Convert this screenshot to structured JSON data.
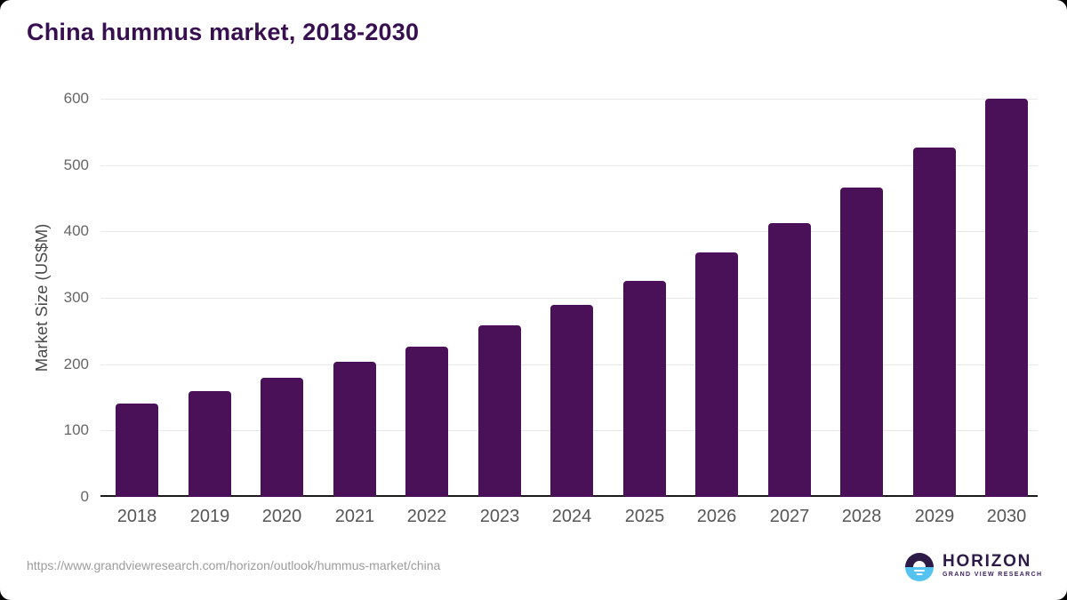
{
  "title": "China hummus market, 2018-2030",
  "chart_data": {
    "type": "bar",
    "title": "China hummus market, 2018-2030",
    "categories": [
      "2018",
      "2019",
      "2020",
      "2021",
      "2022",
      "2023",
      "2024",
      "2025",
      "2026",
      "2027",
      "2028",
      "2029",
      "2030"
    ],
    "values": [
      140,
      160,
      180,
      203,
      227,
      258,
      289,
      326,
      368,
      413,
      466,
      527,
      600
    ],
    "xlabel": "",
    "ylabel": "Market Size (US$M)",
    "ylim": [
      0,
      600
    ],
    "yticks": [
      0,
      100,
      200,
      300,
      400,
      500,
      600
    ],
    "grid": "horizontal",
    "legend": "none",
    "bar_color": "#4a1158"
  },
  "footer": {
    "source_url": "https://www.grandviewresearch.com/horizon/outlook/hummus-market/china"
  },
  "logo": {
    "brand": "HORIZON",
    "subtitle": "GRAND VIEW RESEARCH",
    "purple": "#2e1a47",
    "blue": "#55c3f0"
  },
  "colors": {
    "title_text": "#381050",
    "bar": "#4a1158",
    "axis_text": "#666666",
    "x_label_text": "#565656",
    "gridline": "#e8e8e8",
    "baseline": "#1a1a1a",
    "url_text": "#9c9c9c",
    "background": "#ffffff"
  }
}
